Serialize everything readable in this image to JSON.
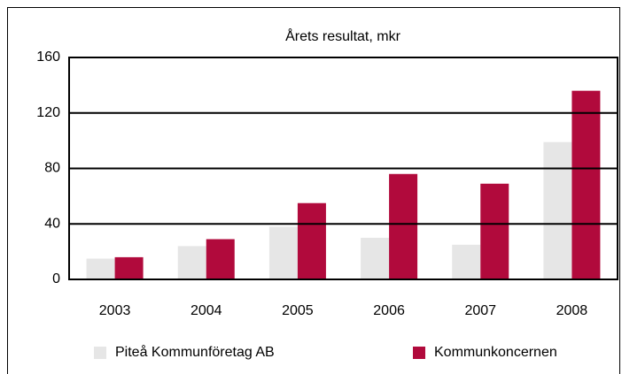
{
  "chart_data": {
    "type": "bar",
    "title": "Årets resultat, mkr",
    "categories": [
      "2003",
      "2004",
      "2005",
      "2006",
      "2007",
      "2008"
    ],
    "series": [
      {
        "name": "Piteå Kommunföretag AB",
        "color": "#e6e6e6",
        "values": [
          15,
          24,
          38,
          30,
          25,
          99
        ]
      },
      {
        "name": "Kommunkoncernen",
        "color": "#b10a3c",
        "values": [
          16,
          29,
          55,
          76,
          69,
          136
        ]
      }
    ],
    "ylim": [
      0,
      160
    ],
    "yticks": [
      0,
      40,
      80,
      120,
      160
    ],
    "grid": true
  }
}
